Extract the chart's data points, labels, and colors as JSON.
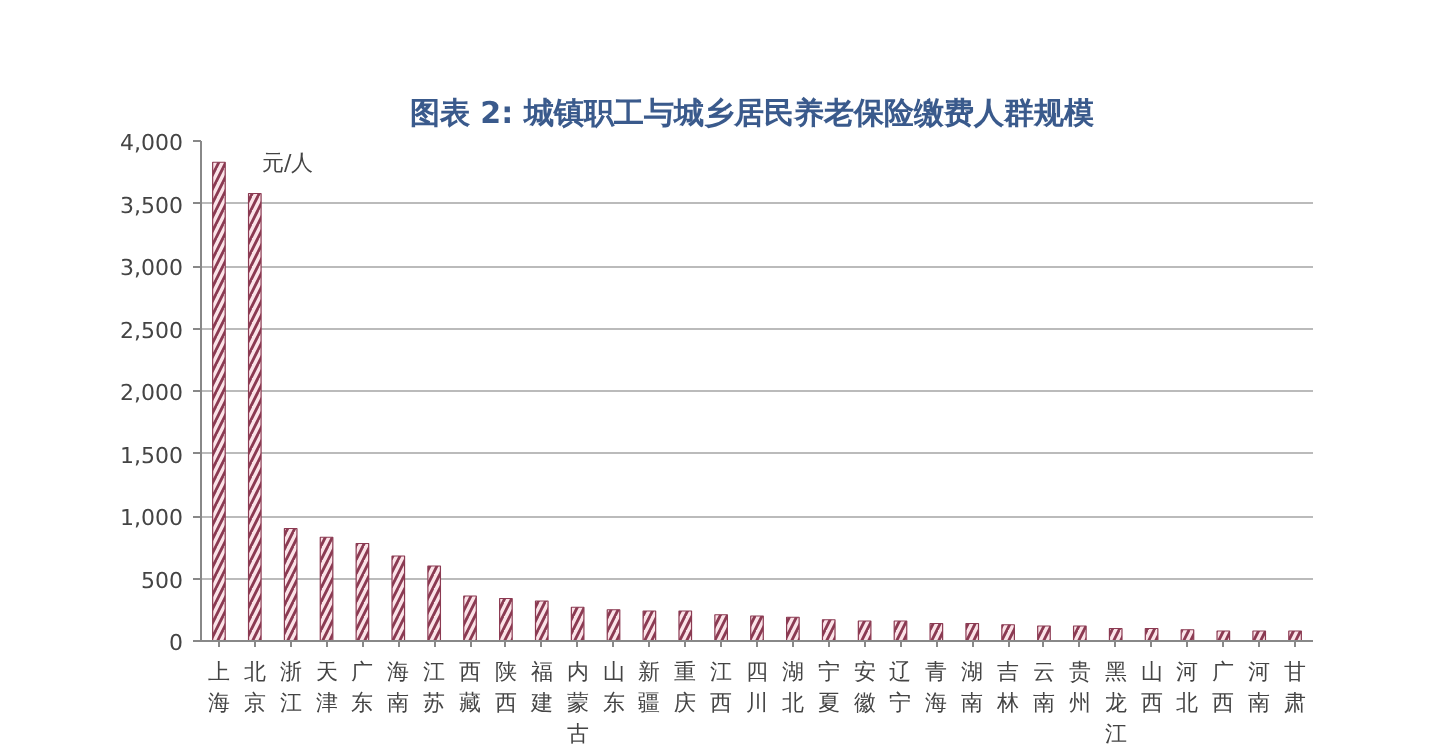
{
  "chart_data": {
    "type": "bar",
    "title": "图表 2:  城镇职工与城乡居民养老保险缴费人群规模",
    "annotations": [
      "元/人"
    ],
    "categories": [
      "上海",
      "北京",
      "浙江",
      "天津",
      "广东",
      "海南",
      "江苏",
      "西藏",
      "陕西",
      "福建",
      "内蒙古",
      "山东",
      "新疆",
      "重庆",
      "江西",
      "四川",
      "湖北",
      "宁夏",
      "安徽",
      "辽宁",
      "青海",
      "湖南",
      "吉林",
      "云南",
      "贵州",
      "黑龙江",
      "山西",
      "河北",
      "广西",
      "河南",
      "甘肃"
    ],
    "values": [
      3830,
      3580,
      900,
      830,
      780,
      680,
      600,
      360,
      340,
      320,
      270,
      250,
      240,
      240,
      210,
      200,
      190,
      170,
      160,
      160,
      140,
      140,
      130,
      120,
      120,
      100,
      100,
      90,
      80,
      80,
      80
    ],
    "color": "#8b3a52",
    "ylim": [
      0,
      4000
    ],
    "yticks": [
      {
        "value": 0,
        "label": "0"
      },
      {
        "value": 500,
        "label": "500"
      },
      {
        "value": 1000,
        "label": "1,000"
      },
      {
        "value": 1500,
        "label": "1,500"
      },
      {
        "value": 2000,
        "label": "2,000"
      },
      {
        "value": 2500,
        "label": "2,500"
      },
      {
        "value": 3000,
        "label": "3,000"
      },
      {
        "value": 3500,
        "label": "3,500"
      },
      {
        "value": 4000,
        "label": "4,000"
      }
    ],
    "grid": "y"
  }
}
